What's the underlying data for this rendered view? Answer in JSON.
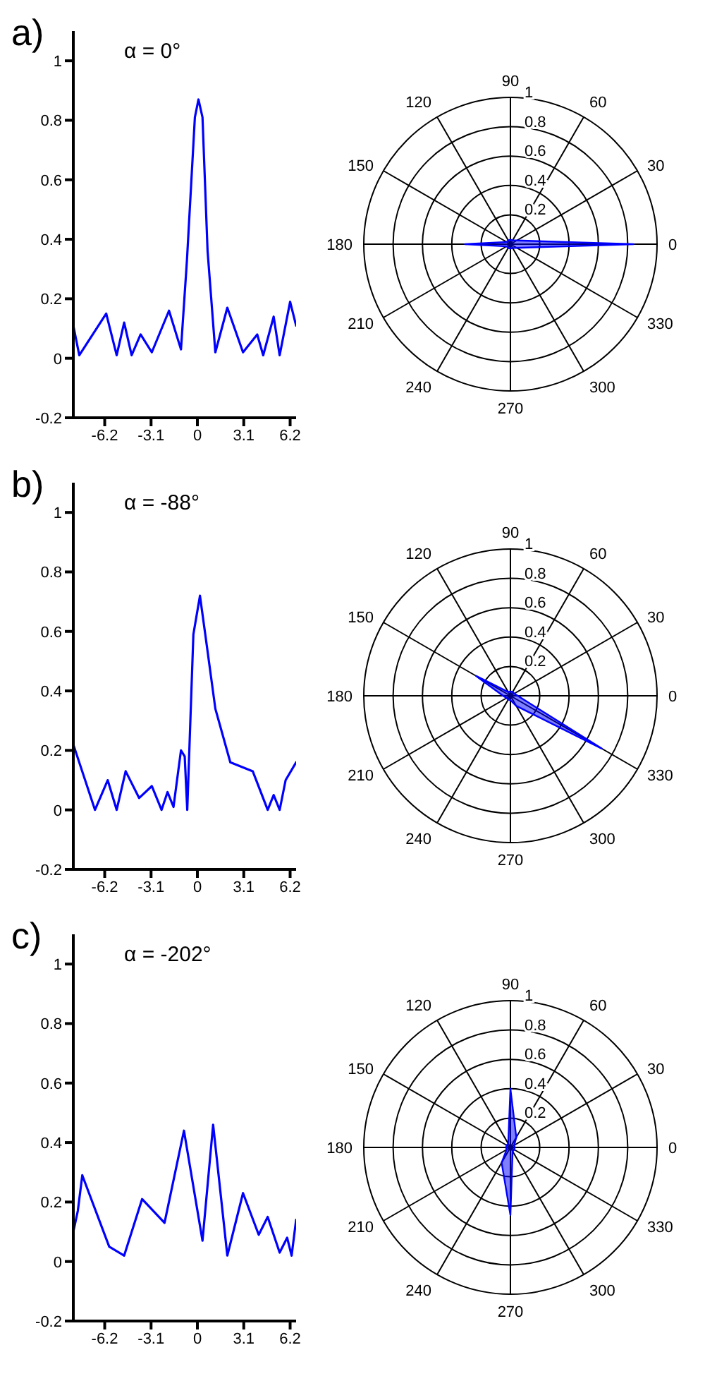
{
  "chart_data": [
    {
      "type": "line",
      "title": "a)",
      "annotations": [
        "α = 0°"
      ],
      "xlim": [
        -8.3,
        6.6
      ],
      "xticks": [
        -6.2,
        -3.1,
        0,
        3.1,
        6.2
      ],
      "ylim": [
        -0.2,
        1.1
      ],
      "yticks": [
        -0.2,
        0,
        0.2,
        0.4,
        0.6,
        0.8,
        1
      ],
      "series": [
        {
          "color": "#0000ff",
          "x": [
            -8.3,
            -7.9,
            -6.1,
            -5.4,
            -4.9,
            -4.4,
            -3.8,
            -3.05,
            -1.9,
            -1.1,
            -0.7,
            -0.17,
            0.07,
            0.34,
            0.68,
            1.2,
            2.0,
            3.05,
            4.0,
            4.4,
            5.1,
            5.5,
            6.2,
            6.6
          ],
          "values": [
            0.11,
            0.01,
            0.15,
            0.01,
            0.12,
            0.01,
            0.08,
            0.02,
            0.16,
            0.03,
            0.33,
            0.81,
            0.87,
            0.81,
            0.36,
            0.02,
            0.17,
            0.02,
            0.08,
            0.01,
            0.14,
            0.01,
            0.19,
            0.11
          ]
        }
      ]
    },
    {
      "type": "radar",
      "categories": [
        "90",
        "60",
        "30",
        "0",
        "330",
        "300",
        "270",
        "240",
        "210",
        "180",
        "150",
        "120"
      ],
      "ylim": [
        0,
        1
      ],
      "yticks": [
        0.2,
        0.4,
        0.6,
        0.8,
        1
      ],
      "grid": true,
      "series": [
        {
          "color": "#0000ff",
          "values": [
            0.03,
            0.03,
            0.05,
            0.84,
            0.05,
            0.03,
            0.03,
            0.03,
            0.03,
            0.31,
            0.03,
            0.03
          ]
        }
      ]
    },
    {
      "type": "line",
      "title": "b)",
      "annotations": [
        "α = -88°"
      ],
      "xlim": [
        -8.3,
        6.6
      ],
      "xticks": [
        -6.2,
        -3.1,
        0,
        3.1,
        6.2
      ],
      "ylim": [
        -0.2,
        1.1
      ],
      "yticks": [
        -0.2,
        0,
        0.2,
        0.4,
        0.6,
        0.8,
        1
      ],
      "series": [
        {
          "color": "#0000ff",
          "x": [
            -8.3,
            -6.85,
            -6.0,
            -5.4,
            -4.8,
            -3.9,
            -3.05,
            -2.4,
            -2.0,
            -1.6,
            -1.1,
            -0.85,
            -0.68,
            -0.27,
            0.17,
            0.58,
            1.2,
            2.2,
            3.7,
            4.7,
            5.1,
            5.5,
            5.9,
            6.6
          ],
          "values": [
            0.22,
            0.0,
            0.1,
            0.0,
            0.13,
            0.04,
            0.08,
            0.0,
            0.06,
            0.01,
            0.2,
            0.18,
            0.0,
            0.59,
            0.72,
            0.57,
            0.34,
            0.16,
            0.13,
            0.0,
            0.05,
            0.0,
            0.1,
            0.16
          ]
        }
      ]
    },
    {
      "type": "radar",
      "categories": [
        "90",
        "60",
        "30",
        "0",
        "330",
        "300",
        "270",
        "240",
        "210",
        "180",
        "150",
        "120"
      ],
      "ylim": [
        0,
        1
      ],
      "yticks": [
        0.2,
        0.4,
        0.6,
        0.8,
        1
      ],
      "grid": true,
      "series": [
        {
          "color": "#0000ff",
          "values": [
            0.03,
            0.03,
            0.03,
            0.05,
            0.72,
            0.08,
            0.03,
            0.03,
            0.03,
            0.05,
            0.27,
            0.03
          ]
        }
      ]
    },
    {
      "type": "line",
      "title": "c)",
      "annotations": [
        "α = -202°"
      ],
      "xlim": [
        -8.3,
        6.6
      ],
      "xticks": [
        -6.2,
        -3.1,
        0,
        3.1,
        6.2
      ],
      "ylim": [
        -0.2,
        1.1
      ],
      "yticks": [
        -0.2,
        0,
        0.2,
        0.4,
        0.6,
        0.8,
        1
      ],
      "series": [
        {
          "color": "#0000ff",
          "x": [
            -8.3,
            -8.0,
            -7.7,
            -5.9,
            -4.9,
            -3.7,
            -2.2,
            -0.9,
            0.34,
            1.05,
            2.0,
            3.05,
            4.1,
            4.7,
            5.5,
            6.0,
            6.3,
            6.6
          ],
          "values": [
            0.1,
            0.17,
            0.29,
            0.05,
            0.02,
            0.21,
            0.13,
            0.44,
            0.07,
            0.46,
            0.02,
            0.23,
            0.09,
            0.15,
            0.03,
            0.08,
            0.02,
            0.14
          ]
        }
      ]
    },
    {
      "type": "radar",
      "categories": [
        "90",
        "60",
        "30",
        "0",
        "330",
        "300",
        "270",
        "240",
        "210",
        "180",
        "150",
        "120"
      ],
      "ylim": [
        0,
        1
      ],
      "yticks": [
        0.2,
        0.4,
        0.6,
        0.8,
        1
      ],
      "grid": true,
      "series": [
        {
          "color": "#0000ff",
          "values": [
            0.4,
            0.08,
            0.03,
            0.03,
            0.03,
            0.03,
            0.46,
            0.12,
            0.03,
            0.03,
            0.03,
            0.03
          ]
        }
      ]
    }
  ]
}
